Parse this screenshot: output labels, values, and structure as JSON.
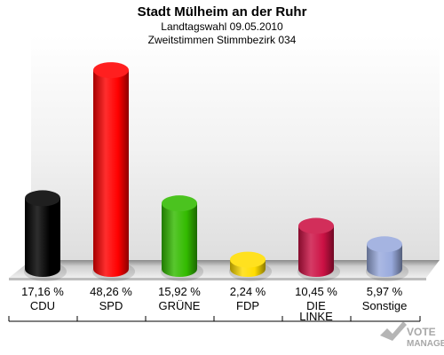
{
  "chart_data": {
    "type": "bar",
    "title": "Stadt Mülheim an der Ruhr",
    "subtitle": "Landtagswahl 09.05.2010",
    "subtitle2": "Zweitstimmen Stimmbezirk 034",
    "categories": [
      "CDU",
      "SPD",
      "GRÜNE",
      "FDP",
      "DIE LINKE",
      "Sonstige"
    ],
    "category_lines": [
      [
        "CDU"
      ],
      [
        "SPD"
      ],
      [
        "GRÜNE"
      ],
      [
        "FDP"
      ],
      [
        "DIE",
        "LINKE"
      ],
      [
        "Sonstige"
      ]
    ],
    "values": [
      17.16,
      48.26,
      15.92,
      2.24,
      10.45,
      5.97
    ],
    "value_labels": [
      "17,16 %",
      "48,26 %",
      "15,92 %",
      "2,24 %",
      "10,45 %",
      "5,97 %"
    ],
    "colors": [
      "#000000",
      "#ff0000",
      "#33bb00",
      "#ffdd00",
      "#cc1144",
      "#99aadd"
    ],
    "ylim": [
      0,
      50
    ],
    "grid": false,
    "legend": "none"
  },
  "watermark": {
    "text_top": "VOTE",
    "text_bottom": "MANAGER"
  }
}
